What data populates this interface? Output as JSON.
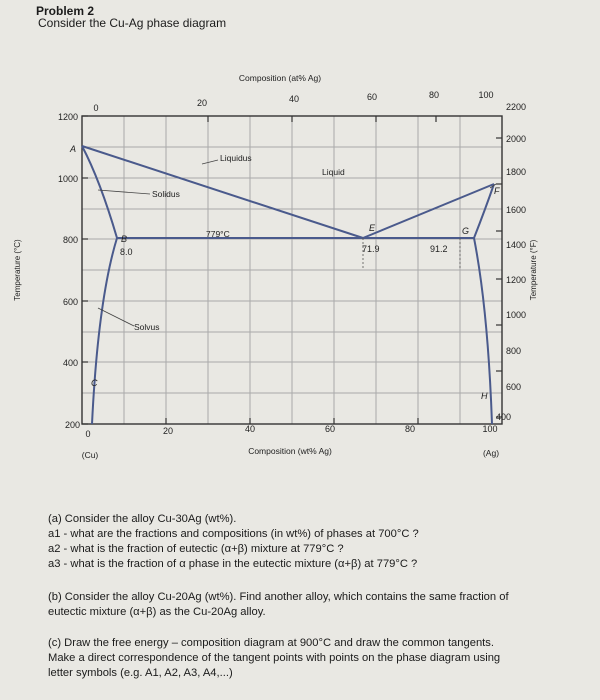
{
  "header": {
    "problem": "Problem 2",
    "subtitle": "Consider the Cu-Ag phase diagram"
  },
  "diagram": {
    "top_axis_label": "Composition (at% Ag)",
    "top_ticks": [
      "0",
      "20",
      "40",
      "60",
      "80",
      "100"
    ],
    "bottom_axis_label": "Composition (wt% Ag)",
    "bottom_ticks": [
      "0",
      "20",
      "40",
      "60",
      "80",
      "100"
    ],
    "left_axis_label": "Temperature (°C)",
    "left_ticks": [
      "1200",
      "1000",
      "800",
      "600",
      "400",
      "200"
    ],
    "right_axis_label": "Temperature (°F)",
    "right_ticks": [
      "2200",
      "2000",
      "1800",
      "1600",
      "1400",
      "1200",
      "1000",
      "800",
      "600",
      "400"
    ],
    "end_labels": {
      "left": "(Cu)",
      "right": "(Ag)"
    },
    "region_labels": {
      "liquidus": "Liquidus",
      "liquid": "Liquid",
      "solidus": "Solidus",
      "solvus": "Solvus",
      "eutectic_temp": "779°C"
    },
    "point_labels": {
      "A": "A",
      "B": "B",
      "C": "C",
      "E": "E",
      "F": "F",
      "G": "G",
      "H": "H"
    },
    "composition_labels": {
      "b": "8.0",
      "e": "71.9",
      "g": "91.2"
    },
    "colors": {
      "curve": "#4a5a8c",
      "grid": "#a9a9a9",
      "axis": "#333333"
    }
  },
  "questions": {
    "a_intro": "(a) Consider the alloy Cu-30Ag (wt%).",
    "a1": "a1 - what are the fractions and compositions (in wt%) of phases at 700°C ?",
    "a2": "a2 - what is the fraction of eutectic (α+β) mixture at 779°C ?",
    "a3": "a3 - what is the fraction of α phase in the eutectic mixture (α+β) at 779°C ?",
    "b_line1": "(b) Consider the alloy Cu-20Ag (wt%). Find another alloy, which contains the same fraction of",
    "b_line2": "eutectic mixture (α+β) as the Cu-20Ag alloy.",
    "c_line1": "(c) Draw the free energy – composition diagram at 900°C and draw the common tangents.",
    "c_line2": "Make a direct correspondence of the tangent points with points on the phase diagram using",
    "c_line3": "letter symbols (e.g. A1, A2, A3, A4,...)"
  }
}
